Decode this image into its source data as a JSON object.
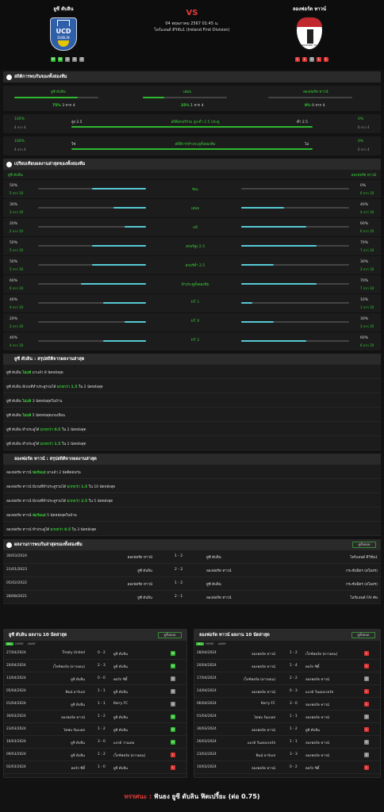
{
  "header": {
    "home": "ยูซี ดับลิน",
    "away": "ลองฟอร์ด ทาวน์",
    "vs": "VS",
    "date": "04 พฤษภาคม 2567 01:45 น.",
    "league": "ไอร์แลนด์ ดิวิชั่น1 (Ireland First Division)",
    "home_crest_text": "UCD",
    "home_crest_sub": "DUBLIN",
    "away_crest_text": "LONGFORD TOWN",
    "home_form": [
      "W",
      "W",
      "D",
      "D",
      "D"
    ],
    "away_form": [
      "L",
      "L",
      "D",
      "L",
      "L"
    ]
  },
  "h2h_stats": {
    "title": "สถิติการพบกันของทั้งสองทีม",
    "home": "ยูซี ดับลิน",
    "draw": "เสมอ",
    "away": "ลองฟอร์ด ทาวน์",
    "home_pct": "75%",
    "home_cnt": "3 จาก 4",
    "draw_pct": "25%",
    "draw_cnt": "1 จาก 4",
    "away_pct": "0%",
    "away_cnt": "0 จาก 4",
    "home_frac": 0.75,
    "draw_frac": 0.25,
    "away_frac": 0,
    "ou": {
      "lp": "100%",
      "lc": "4 จาก 4",
      "ll": "สูง 2.5",
      "mid": "สถิติสกอร์รวม สูง-ต่ำ 2.5 ประตู",
      "rl": "ต่ำ 2.5",
      "rp": "0%",
      "rc": "0 จาก 4"
    },
    "bt": {
      "lp": "100%",
      "lc": "4 จาก 4",
      "ll": "ใช่",
      "mid": "สถิติการทำประตูทั้งสองทีม",
      "rl": "ไม่",
      "rp": "0%",
      "rc": "0 จาก 4"
    }
  },
  "compare": {
    "title": "เปรียบเทียบผลงานล่าสุดของทั้งสองทีม",
    "home": "ยูซี ดับลิน",
    "away": "ลองฟอร์ด ทาวน์",
    "rows": [
      {
        "label": "ชนะ",
        "lp": "50%",
        "lc": "5 จาก 10",
        "lv": 0.5,
        "rp": "0%",
        "rc": "0 จาก 10",
        "rv": 0
      },
      {
        "label": "เสมอ",
        "lp": "30%",
        "lc": "3 จาก 10",
        "lv": 0.3,
        "rp": "40%",
        "rc": "4 จาก 10",
        "rv": 0.4
      },
      {
        "label": "แพ้",
        "lp": "20%",
        "lc": "2 จาก 10",
        "lv": 0.2,
        "rp": "60%",
        "rc": "6 จาก 10",
        "rv": 0.6
      },
      {
        "label": "สกอร์สูง 2.5",
        "lp": "50%",
        "lc": "5 จาก 10",
        "lv": 0.5,
        "rp": "70%",
        "rc": "7 จาก 10",
        "rv": 0.7
      },
      {
        "label": "สกอร์ต่ำ 2.5",
        "lp": "50%",
        "lc": "5 จาก 10",
        "lv": 0.5,
        "rp": "30%",
        "rc": "3 จาก 10",
        "rv": 0.3
      },
      {
        "label": "ทำประตูทั้งสองทีม",
        "lp": "60%",
        "lc": "6 จาก 10",
        "lv": 0.6,
        "rp": "70%",
        "rc": "7 จาก 10",
        "rv": 0.7
      },
      {
        "label": "HT 1",
        "lp": "40%",
        "lc": "4 จาก 10",
        "lv": 0.4,
        "rp": "10%",
        "rc": "1 จาก 10",
        "rv": 0.1
      },
      {
        "label": "HT X",
        "lp": "20%",
        "lc": "2 จาก 10",
        "lv": 0.2,
        "rp": "30%",
        "rc": "3 จาก 10",
        "rv": 0.3
      },
      {
        "label": "HT 2",
        "lp": "40%",
        "lc": "4 จาก 10",
        "lv": 0.4,
        "rp": "60%",
        "rc": "6 จาก 10",
        "rv": 0.6
      }
    ]
  },
  "home_summary": {
    "title": "ยูซี ดับลิน : สรุปสถิติจากผลงานล่าสุด",
    "rows": [
      {
        "a": "ยูซี ดับลิน ",
        "h": "ไม่แพ้",
        "b": " มาแล้ว 8 นัดหลังสุด"
      },
      {
        "a": "ยูซี ดับลิน  มีเกมที่ทำประตูรวมได้ ",
        "h": "มากกว่า 1.5",
        "b": " ใน 2 นัดหลังสุด"
      },
      {
        "a": "ยูซี ดับลิน ",
        "h": "ไม่แพ้",
        "b": " 3  นัดหลังสุดในบ้าน"
      },
      {
        "a": "ยูซี ดับลิน ",
        "h": "ไม่แพ้",
        "b": " 5  นัดหลังสุดเกมเยือน"
      },
      {
        "a": "ยูซี ดับลิน ทำประตูได้ ",
        "h": "มากกว่า 0.5",
        "b": " ใน 2 นัดหลังสุด"
      },
      {
        "a": "ยูซี ดับลิน ทำประตูได้ ",
        "h": "มากกว่า 1.5",
        "b": " ใน 2 นัดหลังสุด"
      }
    ]
  },
  "away_summary": {
    "title": "ลองฟอร์ด ทาวน์ : สรุปสถิติจากผลงานล่าสุด",
    "rows": [
      {
        "a": "ลองฟอร์ด ทาวน์ ",
        "h": "ฟอร์มแย่",
        "b": " มาแล้ว 2 นัดติดต่อกัน"
      },
      {
        "a": "ลองฟอร์ด ทาวน์  มีเกมที่ทำประตูรวมได้ ",
        "h": "มากกว่า 1.5",
        "b": " ใน 10 นัดหลังสุด"
      },
      {
        "a": "ลองฟอร์ด ทาวน์  มีเกมที่ทำประตูรวมได้ ",
        "h": "มากกว่า 2.5",
        "b": " ใน 5 นัดหลังสุด"
      },
      {
        "a": "ลองฟอร์ด ทาวน์ ",
        "h": "ฟอร์มแย่",
        "b": " 5  นัดหลังสุดในบ้าน"
      },
      {
        "a": "ลองฟอร์ด ทาวน์ ทำประตูได้ ",
        "h": "มากกว่า 0.5",
        "b": " ใน 3 นัดหลังสุด"
      }
    ]
  },
  "h2h": {
    "title": "ผลงานการพบกันล่าสุดของทั้งสองทีม",
    "btn": "ดูทั้งหมด",
    "rows": [
      {
        "d": "30/03/2024",
        "h": "ลองฟอร์ด ทาวน์",
        "s": "1 - 2",
        "a": "ยูซี ดับลิน",
        "l": "ไอร์แลนด์ ดิวิชั่น1"
      },
      {
        "d": "21/01/2023",
        "h": "ยูซี ดับลิน",
        "s": "2 - 2",
        "a": "ลองฟอร์ด ทาวน์",
        "l": "กระชับมิตร (สโมสร)"
      },
      {
        "d": "05/02/2022",
        "h": "ลองฟอร์ด ทาวน์",
        "s": "1 - 2",
        "a": "ยูซี ดับลิน",
        "l": "กระชับมิตร (สโมสร)"
      },
      {
        "d": "28/08/2021",
        "h": "ยูซี ดับลิน",
        "s": "2 - 1",
        "a": "ลองฟอร์ด ทาวน์",
        "l": "ไอร์แลนด์ FAI คัพ"
      }
    ]
  },
  "home_last": {
    "title": "ยูซี ดับลิน ผลงาน 10 นัดล่าสุด",
    "btn": "ดูทั้งหมด",
    "tabs": [
      "ALL",
      "HOME",
      "AWAY"
    ],
    "rows": [
      {
        "d": "27/04/2024",
        "h": "Treaty United",
        "s": "0 - 2",
        "a": "ยูซี ดับลิน",
        "r": "W"
      },
      {
        "d": "20/04/2024",
        "h": "เว็กซ์ฟอร์ด (ยาวยอน)",
        "s": "2 - 3",
        "a": "ยูซี ดับลิน",
        "r": "W"
      },
      {
        "d": "13/04/2024",
        "h": "ยูซี ดับลิน",
        "s": "0 - 0",
        "a": "คอร์ก ซิตี้",
        "r": "D"
      },
      {
        "d": "05/04/2024",
        "h": "ฟินน์ ฮาร์เบส",
        "s": "1 - 1",
        "a": "ยูซี ดับลิน",
        "r": "D"
      },
      {
        "d": "01/04/2024",
        "h": "ยูซี ดับลิน",
        "s": "1 - 1",
        "a": "Kerry FC",
        "r": "D"
      },
      {
        "d": "30/03/2024",
        "h": "ลองฟอร์ด ทาวน์",
        "s": "1 - 2",
        "a": "ยูซี ดับลิน",
        "r": "W"
      },
      {
        "d": "23/03/2024",
        "h": "โคฟบ รัมเบลส",
        "s": "1 - 2",
        "a": "ยูซี ดับลิน",
        "r": "W"
      },
      {
        "d": "16/03/2024",
        "h": "ยูซี ดับลิน",
        "s": "3 - 0",
        "a": "แบรย์ วานเดอ",
        "r": "W"
      },
      {
        "d": "09/03/2024",
        "h": "ยูซี ดับลิน",
        "s": "1 - 2",
        "a": "เว็กซ์ฟอร์ด (ยาวยอน)",
        "r": "L"
      },
      {
        "d": "02/03/2024",
        "h": "คอร์ก ซิตี้",
        "s": "1 - 0",
        "a": "ยูซี ดับลิน",
        "r": "L"
      }
    ]
  },
  "away_last": {
    "title": "ลองฟอร์ด ทาวน์ ผลงาน 10 นัดล่าสุด",
    "btn": "ดูทั้งหมด",
    "tabs": [
      "ALL",
      "HOME",
      "AWAY"
    ],
    "rows": [
      {
        "d": "28/04/2024",
        "h": "ลองฟอร์ด ทาวน์",
        "s": "1 - 2",
        "a": "เว็กซ์ฟอร์ด (ยาวยอน)",
        "r": "L"
      },
      {
        "d": "20/04/2024",
        "h": "ลองฟอร์ด ทาวน์",
        "s": "1 - 4",
        "a": "คอร์ก ซิตี้",
        "r": "L"
      },
      {
        "d": "17/04/2024",
        "h": "เว็กซ์ฟอร์ด (ยาวยอน)",
        "s": "2 - 2",
        "a": "ลองฟอร์ด ทาวน์",
        "r": "D"
      },
      {
        "d": "14/04/2024",
        "h": "ลองฟอร์ด ทาวน์",
        "s": "0 - 3",
        "a": "แบรย์ วันเดอเรอร์ส",
        "r": "L"
      },
      {
        "d": "06/04/2024",
        "h": "Kerry FC",
        "s": "3 - 0",
        "a": "ลองฟอร์ด ทาวน์",
        "r": "L"
      },
      {
        "d": "01/04/2024",
        "h": "โคฟบ รัมเบลส",
        "s": "1 - 1",
        "a": "ลองฟอร์ด ทาวน์",
        "r": "D"
      },
      {
        "d": "30/03/2024",
        "h": "ลองฟอร์ด ทาวน์",
        "s": "1 - 2",
        "a": "ยูซี ดับลิน",
        "r": "L"
      },
      {
        "d": "26/03/2024",
        "h": "แบรย์ วันเดอเรอร์ส",
        "s": "1 - 1",
        "a": "ลองฟอร์ด ทาวน์",
        "r": "D"
      },
      {
        "d": "23/03/2024",
        "h": "ฟินน์ ฮาร์เบส",
        "s": "3 - 3",
        "a": "ลองฟอร์ด ทาวน์",
        "r": "D"
      },
      {
        "d": "10/03/2024",
        "h": "ลองฟอร์ด ทาวน์",
        "s": "0 - 2",
        "a": "คอร์ก ซิตี้",
        "r": "L"
      }
    ]
  },
  "footer": {
    "label": "ทรรศนะ : ",
    "text": "ฟันธง ยูซี ดับลิน ฟิตเปรี้ยะ (ต่อ 0.75)"
  },
  "colors": {
    "accent": "#2eb82e",
    "cyan": "#56c9d4",
    "loss": "#dd3333",
    "bg": "#121212"
  }
}
